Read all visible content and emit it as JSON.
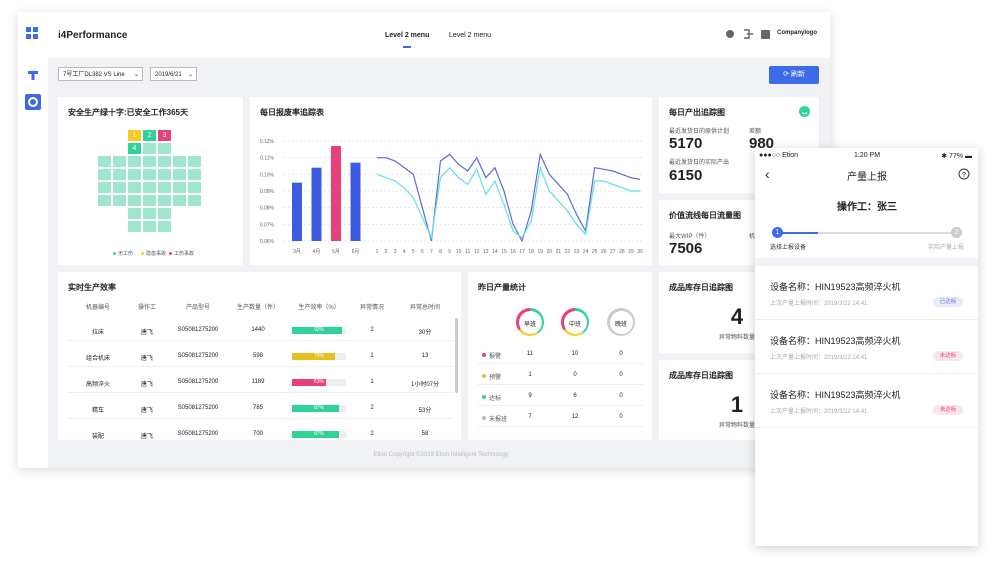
{
  "header": {
    "app_title": "i4Performance",
    "menu": [
      "Level 2 menu",
      "Level 2 menu"
    ],
    "company": "Companylogo"
  },
  "filters": {
    "line": "7号工厂DL382 VS Line",
    "date": "2019/6/21",
    "refresh": "刷新"
  },
  "safety": {
    "title": "安全生产绿十字:已安全工作365天",
    "cells": [
      "1",
      "2",
      "3",
      "4"
    ],
    "legend": [
      "无工伤",
      "隐患事故",
      "工伤事故"
    ],
    "legend_colors": [
      "#2fd39a",
      "#f5cc2a",
      "#e8407a"
    ]
  },
  "scrap_chart": {
    "title": "每日报废率追踪表",
    "ylim": [
      0.06,
      0.12
    ],
    "yticks": [
      {
        "value": 0.12,
        "label": "0.12%"
      },
      {
        "value": 0.11,
        "label": "0.11%"
      },
      {
        "value": 0.1,
        "label": "0.10%"
      },
      {
        "value": 0.09,
        "label": "0.09%"
      },
      {
        "value": 0.08,
        "label": "0.08%"
      },
      {
        "value": 0.07,
        "label": "0.07%"
      },
      {
        "value": 0.06,
        "label": "0.06%"
      }
    ],
    "bars": {
      "categories": [
        "3月",
        "4月",
        "5月",
        "6月"
      ],
      "values": [
        0.095,
        0.104,
        0.117,
        0.107
      ],
      "colors": [
        "#3d5be0",
        "#3d5be0",
        "#e8407a",
        "#3d5be0"
      ]
    },
    "lines": {
      "xlim": [
        1,
        30
      ],
      "x": [
        1,
        2,
        3,
        4,
        5,
        6,
        7,
        8,
        9,
        10,
        11,
        12,
        13,
        14,
        15,
        16,
        17,
        18,
        19,
        20,
        21,
        22,
        23,
        24,
        25,
        26,
        27,
        28,
        29,
        30
      ],
      "series": [
        {
          "color": "#5a6bd6",
          "values": [
            0.11,
            0.11,
            0.108,
            0.104,
            0.1,
            0.08,
            0.06,
            0.108,
            0.112,
            0.106,
            0.102,
            0.11,
            0.098,
            0.104,
            0.09,
            0.07,
            0.06,
            0.078,
            0.112,
            0.1,
            0.094,
            0.088,
            0.076,
            0.066,
            0.104,
            0.103,
            0.102,
            0.1,
            0.098,
            0.097
          ]
        },
        {
          "color": "#5fe0e6",
          "values": [
            0.1,
            0.098,
            0.096,
            0.092,
            0.086,
            0.074,
            0.062,
            0.098,
            0.104,
            0.098,
            0.094,
            0.103,
            0.088,
            0.096,
            0.082,
            0.066,
            0.062,
            0.072,
            0.104,
            0.09,
            0.084,
            0.078,
            0.07,
            0.064,
            0.096,
            0.096,
            0.094,
            0.092,
            0.09,
            0.09
          ]
        }
      ]
    }
  },
  "daily_output": {
    "title": "每日产出追踪图",
    "plan_label": "最近发货日的原供计划",
    "plan": 5170,
    "diff_label": "差额",
    "diff": 980,
    "actual_label": "最近发货日的实际产出",
    "actual": 6150
  },
  "value_stream": {
    "title": "价值流线每日流量图",
    "wip_label": "最大WIP（件）",
    "wip": 7506,
    "cut_label": "机"
  },
  "efficiency": {
    "title": "实时生产效率",
    "headers": [
      "机器编号",
      "操作工",
      "产品型号",
      "生产数量（件）",
      "生产效率（%）",
      "异常情况",
      "异常总时间"
    ],
    "rows": [
      [
        "拉床",
        "唐飞",
        "S05081275200",
        1440,
        {
          "value": 92,
          "label": "92%"
        },
        2,
        "30分"
      ],
      [
        "组合机床",
        "唐飞",
        "S05081275200",
        598,
        {
          "value": 79,
          "label": "79%"
        },
        1,
        13
      ],
      [
        "高频淬火",
        "唐飞",
        "S05081275200",
        1189,
        {
          "value": 63,
          "label": "63%"
        },
        1,
        "1小时07分"
      ],
      [
        "精车",
        "唐飞",
        "S05081275200",
        785,
        {
          "value": 87,
          "label": "87%"
        },
        2,
        "53分"
      ],
      [
        "装配",
        "唐飞",
        "S05081275200",
        700,
        {
          "value": 87,
          "label": "87%"
        },
        2,
        58
      ]
    ],
    "bar_colors": [
      "#2fd39a",
      "#e8c01e",
      "#e8407a",
      "#2fd39a",
      "#2fd39a"
    ]
  },
  "yesterday": {
    "title": "昨日产量统计",
    "shifts": [
      "早班",
      "中班",
      "晚班"
    ],
    "rows": [
      {
        "name": "报警",
        "color": "#e8407a",
        "values": [
          11,
          10,
          0
        ]
      },
      {
        "name": "预警",
        "color": "#e8c01e",
        "values": [
          1,
          0,
          0
        ]
      },
      {
        "name": "达标",
        "color": "#2fd39a",
        "values": [
          9,
          6,
          0
        ]
      },
      {
        "name": "未报班",
        "color": "#bbbbbb",
        "values": [
          7,
          12,
          0
        ]
      }
    ]
  },
  "inventory": [
    {
      "title": "成品库存日追踪图",
      "count": 4,
      "label": "异常物料数量"
    },
    {
      "title": "成品库存日追踪图",
      "count": 1,
      "label": "异常物料数量"
    }
  ],
  "footer": "Etion Copyright ©2019 Etion Intelligent Technology",
  "mobile": {
    "carrier": "●●●○○ Etion",
    "time": "1:20 PM",
    "battery": "77%",
    "title": "产量上报",
    "operator": "操作工：张三",
    "steps": [
      {
        "num": "1",
        "label": "选择上报设备"
      },
      {
        "num": "2",
        "label": "实际产量上报"
      }
    ],
    "devices": [
      {
        "name": "设备名称：HIN19523高频淬火机",
        "time": "上次产量上报时间：2019/3/22 14:41",
        "status": "已达标",
        "color": "#5b7be0"
      },
      {
        "name": "设备名称：HIN19523高频淬火机",
        "time": "上次产量上报时间：2019/3/22 14:41",
        "status": "未达标",
        "color": "#e8407a"
      },
      {
        "name": "设备名称：HIN19523高频淬火机",
        "time": "上次产量上报时间：2019/3/22 14:41",
        "status": "未达标",
        "color": "#e8407a"
      }
    ]
  }
}
